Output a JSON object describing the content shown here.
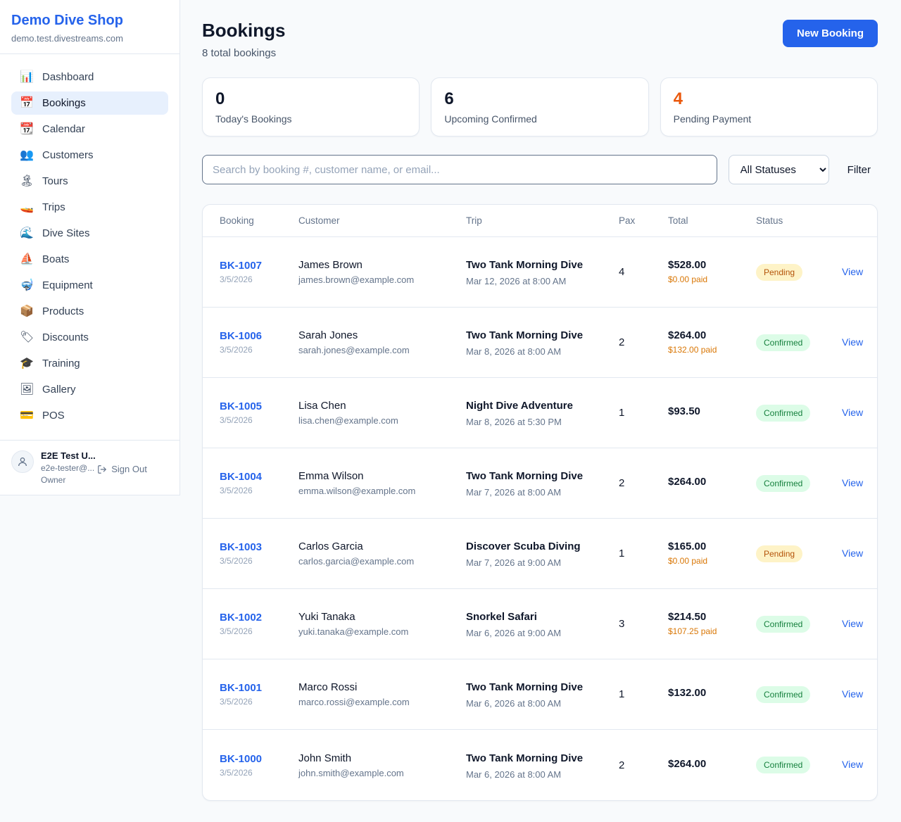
{
  "colors": {
    "accent": "#2563eb",
    "orange": "#ea580c",
    "paid_orange": "#d97706",
    "pending_text": "#b45309",
    "pending_bg": "#fef3c7",
    "confirmed_text": "#15803d",
    "confirmed_bg": "#dcfce7"
  },
  "sidebar": {
    "brand": {
      "name": "Demo Dive Shop",
      "domain": "demo.test.divestreams.com"
    },
    "items": [
      {
        "label": "Dashboard",
        "icon": "📊",
        "icon_name": "bar-chart-icon",
        "active": false
      },
      {
        "label": "Bookings",
        "icon": "📅",
        "icon_name": "calendar-icon",
        "active": true
      },
      {
        "label": "Calendar",
        "icon": "📆",
        "icon_name": "tear-off-calendar-icon",
        "active": false
      },
      {
        "label": "Customers",
        "icon": "👥",
        "icon_name": "people-icon",
        "active": false
      },
      {
        "label": "Tours",
        "icon": "🏝",
        "icon_name": "desert-island-icon",
        "active": false
      },
      {
        "label": "Trips",
        "icon": "🚤",
        "icon_name": "speedboat-icon",
        "active": false
      },
      {
        "label": "Dive Sites",
        "icon": "🌊",
        "icon_name": "wave-icon",
        "active": false
      },
      {
        "label": "Boats",
        "icon": "⛵",
        "icon_name": "sailboat-icon",
        "active": false
      },
      {
        "label": "Equipment",
        "icon": "🤿",
        "icon_name": "diving-mask-icon",
        "active": false
      },
      {
        "label": "Products",
        "icon": "📦",
        "icon_name": "package-icon",
        "active": false
      },
      {
        "label": "Discounts",
        "icon": "🏷",
        "icon_name": "label-tag-icon",
        "active": false
      },
      {
        "label": "Training",
        "icon": "🎓",
        "icon_name": "graduation-cap-icon",
        "active": false
      },
      {
        "label": "Gallery",
        "icon": "🖼",
        "icon_name": "framed-picture-icon",
        "active": false
      },
      {
        "label": "POS",
        "icon": "💳",
        "icon_name": "credit-card-icon",
        "active": false
      }
    ],
    "user": {
      "name": "E2E Test U...",
      "email": "e2e-tester@...",
      "role": "Owner",
      "sign_out_label": "Sign Out"
    }
  },
  "header": {
    "title": "Bookings",
    "subtitle": "8 total bookings",
    "new_booking_label": "New Booking"
  },
  "stats": [
    {
      "value": "0",
      "label": "Today's Bookings",
      "highlight": false
    },
    {
      "value": "6",
      "label": "Upcoming Confirmed",
      "highlight": false
    },
    {
      "value": "4",
      "label": "Pending Payment",
      "highlight": true
    }
  ],
  "filters": {
    "search_placeholder": "Search by booking #, customer name, or email...",
    "status_selected": "All Statuses",
    "filter_label": "Filter"
  },
  "table": {
    "columns": [
      "Booking",
      "Customer",
      "Trip",
      "Pax",
      "Total",
      "Status"
    ],
    "view_label": "View",
    "rows": [
      {
        "booking": "BK-1007",
        "date": "3/5/2026",
        "customer": "James Brown",
        "email": "james.brown@example.com",
        "trip": "Two Tank Morning Dive",
        "trip_time": "Mar 12, 2026 at 8:00 AM",
        "pax": "4",
        "total": "$528.00",
        "paid": "$0.00 paid",
        "status": "Pending"
      },
      {
        "booking": "BK-1006",
        "date": "3/5/2026",
        "customer": "Sarah Jones",
        "email": "sarah.jones@example.com",
        "trip": "Two Tank Morning Dive",
        "trip_time": "Mar 8, 2026 at 8:00 AM",
        "pax": "2",
        "total": "$264.00",
        "paid": "$132.00 paid",
        "status": "Confirmed"
      },
      {
        "booking": "BK-1005",
        "date": "3/5/2026",
        "customer": "Lisa Chen",
        "email": "lisa.chen@example.com",
        "trip": "Night Dive Adventure",
        "trip_time": "Mar 8, 2026 at 5:30 PM",
        "pax": "1",
        "total": "$93.50",
        "paid": "",
        "status": "Confirmed"
      },
      {
        "booking": "BK-1004",
        "date": "3/5/2026",
        "customer": "Emma Wilson",
        "email": "emma.wilson@example.com",
        "trip": "Two Tank Morning Dive",
        "trip_time": "Mar 7, 2026 at 8:00 AM",
        "pax": "2",
        "total": "$264.00",
        "paid": "",
        "status": "Confirmed"
      },
      {
        "booking": "BK-1003",
        "date": "3/5/2026",
        "customer": "Carlos Garcia",
        "email": "carlos.garcia@example.com",
        "trip": "Discover Scuba Diving",
        "trip_time": "Mar 7, 2026 at 9:00 AM",
        "pax": "1",
        "total": "$165.00",
        "paid": "$0.00 paid",
        "status": "Pending"
      },
      {
        "booking": "BK-1002",
        "date": "3/5/2026",
        "customer": "Yuki Tanaka",
        "email": "yuki.tanaka@example.com",
        "trip": "Snorkel Safari",
        "trip_time": "Mar 6, 2026 at 9:00 AM",
        "pax": "3",
        "total": "$214.50",
        "paid": "$107.25 paid",
        "status": "Confirmed"
      },
      {
        "booking": "BK-1001",
        "date": "3/5/2026",
        "customer": "Marco Rossi",
        "email": "marco.rossi@example.com",
        "trip": "Two Tank Morning Dive",
        "trip_time": "Mar 6, 2026 at 8:00 AM",
        "pax": "1",
        "total": "$132.00",
        "paid": "",
        "status": "Confirmed"
      },
      {
        "booking": "BK-1000",
        "date": "3/5/2026",
        "customer": "John Smith",
        "email": "john.smith@example.com",
        "trip": "Two Tank Morning Dive",
        "trip_time": "Mar 6, 2026 at 8:00 AM",
        "pax": "2",
        "total": "$264.00",
        "paid": "",
        "status": "Confirmed"
      }
    ]
  }
}
